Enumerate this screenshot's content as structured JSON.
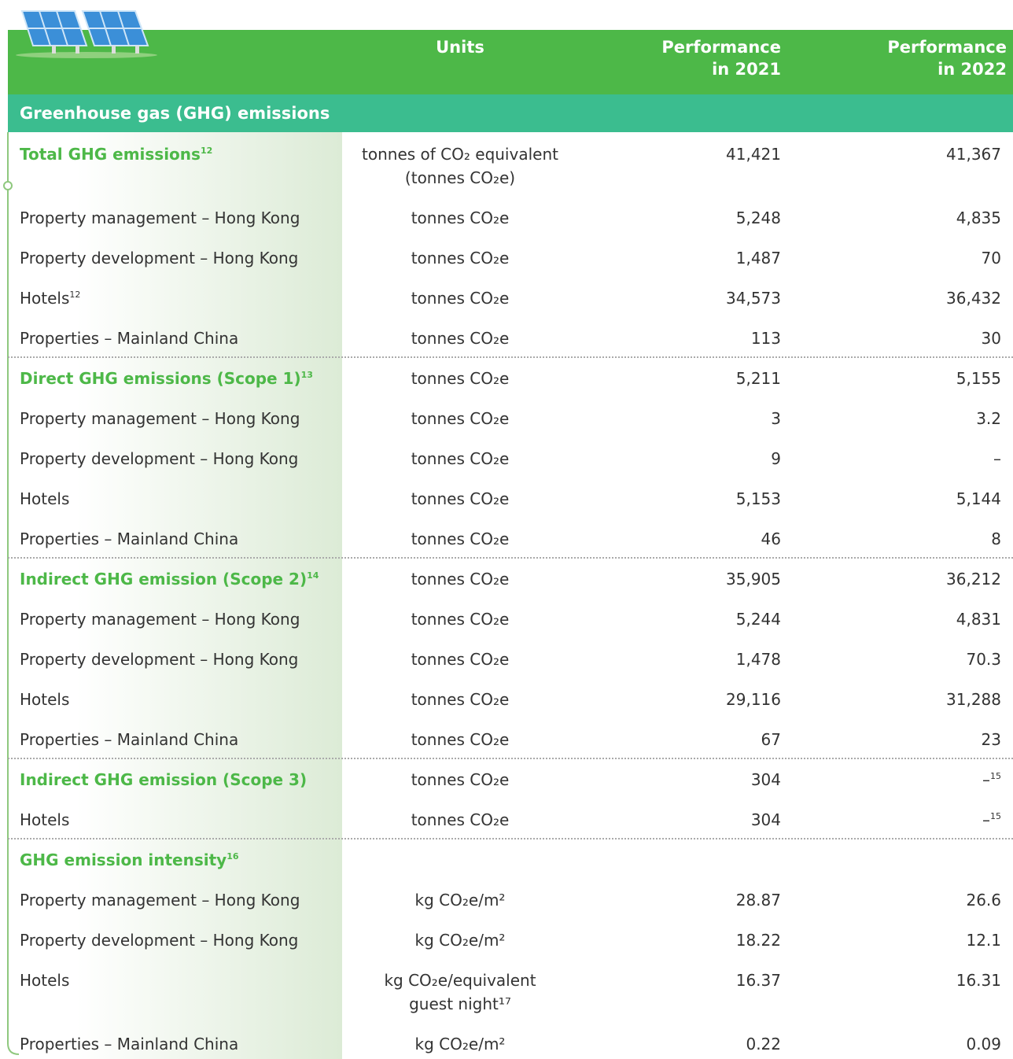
{
  "header": {
    "columns": [
      [
        "Units"
      ],
      [
        "Performance",
        "in 2021"
      ],
      [
        "Performance",
        "in 2022"
      ]
    ]
  },
  "section": "Greenhouse gas (GHG) emissions",
  "groups": [
    {
      "heading": {
        "label": "Total GHG emissions",
        "note": "12",
        "units": [
          "tonnes of CO₂ equivalent",
          "(tonnes CO₂e)"
        ],
        "v2021": "41,421",
        "v2022": "41,367"
      },
      "rows": [
        {
          "label": "Property management – Hong Kong",
          "units": [
            "tonnes CO₂e"
          ],
          "v2021": "5,248",
          "v2022": "4,835"
        },
        {
          "label": "Property development – Hong Kong",
          "units": [
            "tonnes CO₂e"
          ],
          "v2021": "1,487",
          "v2022": "70"
        },
        {
          "label": "Hotels",
          "note": "12",
          "units": [
            "tonnes CO₂e"
          ],
          "v2021": "34,573",
          "v2022": "36,432"
        },
        {
          "label": "Properties – Mainland China",
          "units": [
            "tonnes CO₂e"
          ],
          "v2021": "113",
          "v2022": "30"
        }
      ]
    },
    {
      "heading": {
        "label": "Direct GHG emissions (Scope 1)",
        "note": "13",
        "units": [
          "tonnes CO₂e"
        ],
        "v2021": "5,211",
        "v2022": "5,155"
      },
      "rows": [
        {
          "label": "Property management – Hong Kong",
          "units": [
            "tonnes CO₂e"
          ],
          "v2021": "3",
          "v2022": "3.2"
        },
        {
          "label": "Property development – Hong Kong",
          "units": [
            "tonnes CO₂e"
          ],
          "v2021": "9",
          "v2022": "–"
        },
        {
          "label": "Hotels",
          "units": [
            "tonnes CO₂e"
          ],
          "v2021": "5,153",
          "v2022": "5,144"
        },
        {
          "label": "Properties – Mainland China",
          "units": [
            "tonnes CO₂e"
          ],
          "v2021": "46",
          "v2022": "8"
        }
      ]
    },
    {
      "heading": {
        "label": "Indirect GHG emission (Scope 2)",
        "note": "14",
        "units": [
          "tonnes CO₂e"
        ],
        "v2021": "35,905",
        "v2022": "36,212"
      },
      "rows": [
        {
          "label": "Property management – Hong Kong",
          "units": [
            "tonnes CO₂e"
          ],
          "v2021": "5,244",
          "v2022": "4,831"
        },
        {
          "label": "Property development – Hong Kong",
          "units": [
            "tonnes CO₂e"
          ],
          "v2021": "1,478",
          "v2022": "70.3"
        },
        {
          "label": "Hotels",
          "units": [
            "tonnes CO₂e"
          ],
          "v2021": "29,116",
          "v2022": "31,288"
        },
        {
          "label": "Properties – Mainland China",
          "units": [
            "tonnes CO₂e"
          ],
          "v2021": "67",
          "v2022": "23"
        }
      ]
    },
    {
      "heading": {
        "label": "Indirect GHG emission (Scope 3)",
        "units": [
          "tonnes CO₂e"
        ],
        "v2021": "304",
        "v2022": "–",
        "v2022_note": "15"
      },
      "rows": [
        {
          "label": "Hotels",
          "units": [
            "tonnes CO₂e"
          ],
          "v2021": "304",
          "v2022": "–",
          "v2022_note": "15"
        }
      ]
    },
    {
      "heading": {
        "label": "GHG emission intensity",
        "note": "16"
      },
      "rows": [
        {
          "label": "Property management – Hong Kong",
          "units": [
            "kg CO₂e/m²"
          ],
          "v2021": "28.87",
          "v2022": "26.6"
        },
        {
          "label": "Property development – Hong Kong",
          "units": [
            "kg CO₂e/m²"
          ],
          "v2021": "18.22",
          "v2022": "12.1"
        },
        {
          "label": "Hotels",
          "units": [
            "kg CO₂e/equivalent",
            "guest night¹⁷"
          ],
          "v2021": "16.37",
          "v2022": "16.31"
        },
        {
          "label": "Properties – Mainland China",
          "units": [
            "kg CO₂e/m²"
          ],
          "v2021": "0.22",
          "v2022": "0.09"
        }
      ]
    }
  ]
}
